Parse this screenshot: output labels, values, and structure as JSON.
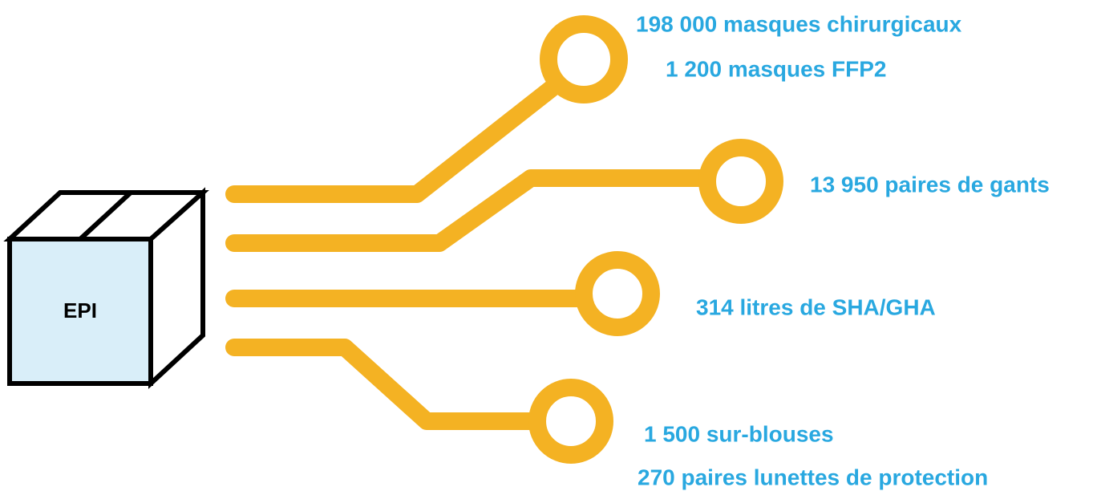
{
  "box": {
    "label": "EPI"
  },
  "items": [
    {
      "text": "198 000 masques chirurgicaux"
    },
    {
      "text": "1 200 masques FFP2"
    },
    {
      "text": "13 950 paires de gants"
    },
    {
      "text": "314 litres de SHA/GHA"
    },
    {
      "text": "1 500 sur-blouses"
    },
    {
      "text": "270 paires lunettes de protection"
    }
  ]
}
